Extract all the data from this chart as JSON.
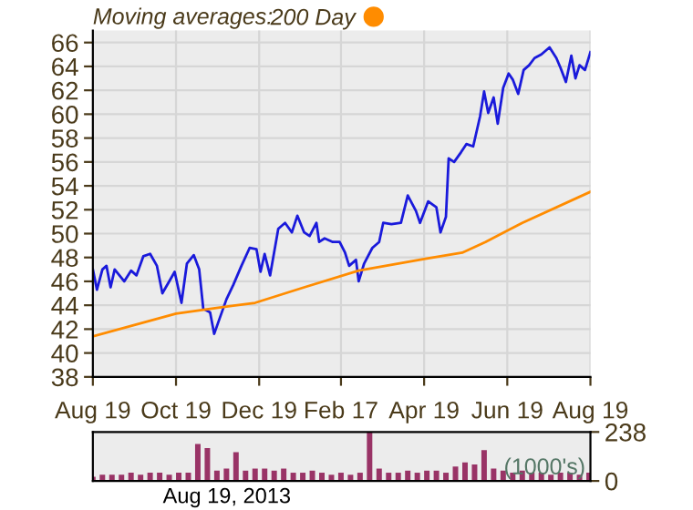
{
  "chart_data": [
    {
      "type": "line",
      "legend_title": "Moving averages:",
      "legend": "top left",
      "grid": true,
      "marker": "none",
      "line_style": "solid",
      "xlim": [
        "2012-08-19",
        "2013-08-19"
      ],
      "ylim": [
        38,
        67
      ],
      "xticks": [
        {
          "value": "2012-08-19",
          "label": "Aug 19"
        },
        {
          "value": "2012-10-19",
          "label": "Oct 19"
        },
        {
          "value": "2012-12-19",
          "label": "Dec 19"
        },
        {
          "value": "2013-02-17",
          "label": "Feb 17"
        },
        {
          "value": "2013-04-19",
          "label": "Apr 19"
        },
        {
          "value": "2013-06-19",
          "label": "Jun 19"
        },
        {
          "value": "2013-08-19",
          "label": "Aug 19"
        }
      ],
      "yticks": [
        38,
        40,
        42,
        44,
        46,
        48,
        50,
        52,
        54,
        56,
        58,
        60,
        62,
        64,
        66
      ],
      "series": [
        {
          "color": "#1a1adb",
          "x": [
            "2012-08-19",
            "2012-08-22",
            "2012-08-26",
            "2012-08-29",
            "2012-09-01",
            "2012-09-04",
            "2012-09-11",
            "2012-09-16",
            "2012-09-20",
            "2012-09-25",
            "2012-09-30",
            "2012-10-05",
            "2012-10-09",
            "2012-10-14",
            "2012-10-18",
            "2012-10-23",
            "2012-10-27",
            "2012-11-01",
            "2012-11-05",
            "2012-11-08",
            "2012-11-13",
            "2012-11-16",
            "2012-11-20",
            "2012-11-25",
            "2012-11-30",
            "2012-12-06",
            "2012-12-12",
            "2012-12-17",
            "2012-12-20",
            "2012-12-23",
            "2012-12-27",
            "2013-01-02",
            "2013-01-07",
            "2013-01-12",
            "2013-01-16",
            "2013-01-21",
            "2013-01-25",
            "2013-01-30",
            "2013-02-01",
            "2013-02-05",
            "2013-02-11",
            "2013-02-16",
            "2013-02-20",
            "2013-02-23",
            "2013-02-28",
            "2013-03-02",
            "2013-03-06",
            "2013-03-12",
            "2013-03-17",
            "2013-03-20",
            "2013-03-26",
            "2013-04-02",
            "2013-04-07",
            "2013-04-13",
            "2013-04-16",
            "2013-04-22",
            "2013-04-28",
            "2013-05-01",
            "2013-05-05",
            "2013-05-07",
            "2013-05-11",
            "2013-05-16",
            "2013-05-20",
            "2013-05-25",
            "2013-05-30",
            "2013-06-02",
            "2013-06-05",
            "2013-06-09",
            "2013-06-12",
            "2013-06-16",
            "2013-06-20",
            "2013-06-23",
            "2013-06-27",
            "2013-07-01",
            "2013-07-05",
            "2013-07-09",
            "2013-07-14",
            "2013-07-20",
            "2013-07-25",
            "2013-07-28",
            "2013-08-01",
            "2013-08-05",
            "2013-08-08",
            "2013-08-11",
            "2013-08-15",
            "2013-08-19"
          ],
          "values": [
            47.0,
            45.3,
            47.0,
            47.3,
            45.5,
            47.0,
            46.0,
            46.9,
            46.5,
            48.1,
            48.3,
            47.3,
            45.0,
            46.0,
            46.8,
            44.2,
            47.5,
            48.2,
            47.0,
            43.7,
            43.4,
            41.6,
            42.9,
            44.5,
            45.7,
            47.3,
            48.8,
            48.7,
            46.8,
            48.3,
            46.5,
            50.4,
            50.9,
            50.1,
            51.5,
            50.1,
            49.8,
            50.9,
            49.3,
            49.6,
            49.3,
            49.3,
            48.4,
            47.3,
            47.8,
            46.0,
            47.5,
            48.8,
            49.3,
            50.9,
            50.8,
            50.9,
            53.2,
            51.9,
            50.9,
            52.7,
            52.2,
            50.1,
            51.4,
            56.3,
            56.0,
            56.8,
            57.5,
            57.3,
            59.8,
            61.9,
            60.1,
            61.4,
            59.2,
            62.2,
            63.4,
            62.9,
            61.7,
            63.7,
            64.1,
            64.7,
            65.0,
            65.6,
            64.7,
            63.9,
            62.7,
            64.9,
            63.0,
            64.1,
            63.7,
            65.2
          ]
        },
        {
          "name": "200 Day",
          "color": "#ff8c00",
          "x": [
            "2012-08-19",
            "2012-10-19",
            "2012-11-19",
            "2012-12-16",
            "2013-01-21",
            "2013-03-02",
            "2013-04-20",
            "2013-05-17",
            "2013-06-03",
            "2013-06-30",
            "2013-08-19"
          ],
          "values": [
            41.4,
            43.3,
            43.8,
            44.2,
            45.5,
            46.9,
            47.9,
            48.4,
            49.3,
            50.9,
            53.5
          ]
        }
      ]
    },
    {
      "type": "bar",
      "tick_labels": "y",
      "grid": false,
      "annotations": [
        "(1000's)",
        "Aug 19, 2013"
      ],
      "xlim": [
        "2012-08-19",
        "2013-08-19"
      ],
      "ylim": [
        0,
        238
      ],
      "yticks": [
        0,
        238
      ],
      "x": [
        "2012-08-19",
        "2012-08-26",
        "2012-09-02",
        "2012-09-09",
        "2012-09-16",
        "2012-09-23",
        "2012-09-30",
        "2012-10-07",
        "2012-10-14",
        "2012-10-21",
        "2012-10-28",
        "2012-11-04",
        "2012-11-11",
        "2012-11-18",
        "2012-11-25",
        "2012-12-02",
        "2012-12-09",
        "2012-12-16",
        "2012-12-23",
        "2012-12-30",
        "2013-01-06",
        "2013-01-13",
        "2013-01-20",
        "2013-01-27",
        "2013-02-03",
        "2013-02-10",
        "2013-02-17",
        "2013-02-24",
        "2013-03-03",
        "2013-03-10",
        "2013-03-17",
        "2013-03-24",
        "2013-03-31",
        "2013-04-07",
        "2013-04-14",
        "2013-04-21",
        "2013-04-28",
        "2013-05-05",
        "2013-05-12",
        "2013-05-19",
        "2013-05-26",
        "2013-06-02",
        "2013-06-09",
        "2013-06-16",
        "2013-06-23",
        "2013-06-30",
        "2013-07-07",
        "2013-07-14",
        "2013-07-21",
        "2013-07-28",
        "2013-08-04",
        "2013-08-11",
        "2013-08-18"
      ],
      "series": [
        {
          "color": "#993366",
          "values": [
            20,
            30,
            30,
            30,
            40,
            30,
            40,
            40,
            30,
            40,
            40,
            180,
            160,
            50,
            60,
            140,
            50,
            60,
            60,
            50,
            60,
            40,
            40,
            50,
            40,
            30,
            40,
            30,
            40,
            238,
            60,
            40,
            40,
            50,
            40,
            50,
            50,
            40,
            70,
            90,
            80,
            150,
            60,
            50,
            40,
            50,
            40,
            40,
            30,
            40,
            40,
            30,
            40
          ]
        }
      ]
    }
  ]
}
